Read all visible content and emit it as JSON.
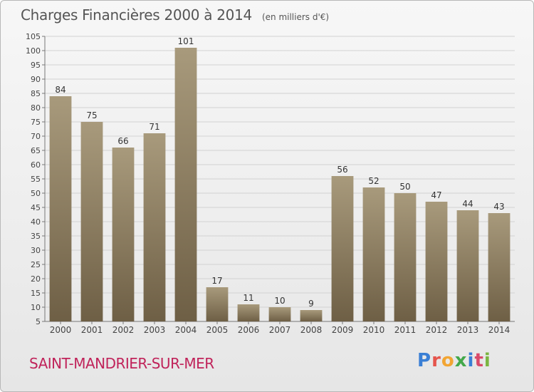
{
  "header": {
    "title": "Charges Financières 2000 à 2014",
    "unit": "(en milliers d'€)"
  },
  "footer": {
    "city": "SAINT-MANDRIER-SUR-MER",
    "logo": "Proxiti"
  },
  "colors": {
    "bar_top": "#a89a7c",
    "bar_bottom": "#6e5f45",
    "city": "#c0235a",
    "logo_letters": [
      "#3a7fd5",
      "#e5554c",
      "#f2a533",
      "#43a84a",
      "#3a7fd5",
      "#d94a6a",
      "#7bb541"
    ]
  },
  "chart_data": {
    "type": "bar",
    "title": "Charges Financières 2000 à 2014",
    "subtitle": "(en milliers d'€)",
    "xlabel": "",
    "ylabel": "",
    "categories": [
      "2000",
      "2001",
      "2002",
      "2003",
      "2004",
      "2005",
      "2006",
      "2007",
      "2008",
      "2009",
      "2010",
      "2011",
      "2012",
      "2013",
      "2014"
    ],
    "values": [
      84,
      75,
      66,
      71,
      101,
      17,
      11,
      10,
      9,
      56,
      52,
      50,
      47,
      44,
      43
    ],
    "ylim": [
      5,
      105
    ],
    "yticks": [
      5,
      10,
      15,
      20,
      25,
      30,
      35,
      40,
      45,
      50,
      55,
      60,
      65,
      70,
      75,
      80,
      85,
      90,
      95,
      100,
      105
    ],
    "grid": true,
    "legend": "none"
  }
}
